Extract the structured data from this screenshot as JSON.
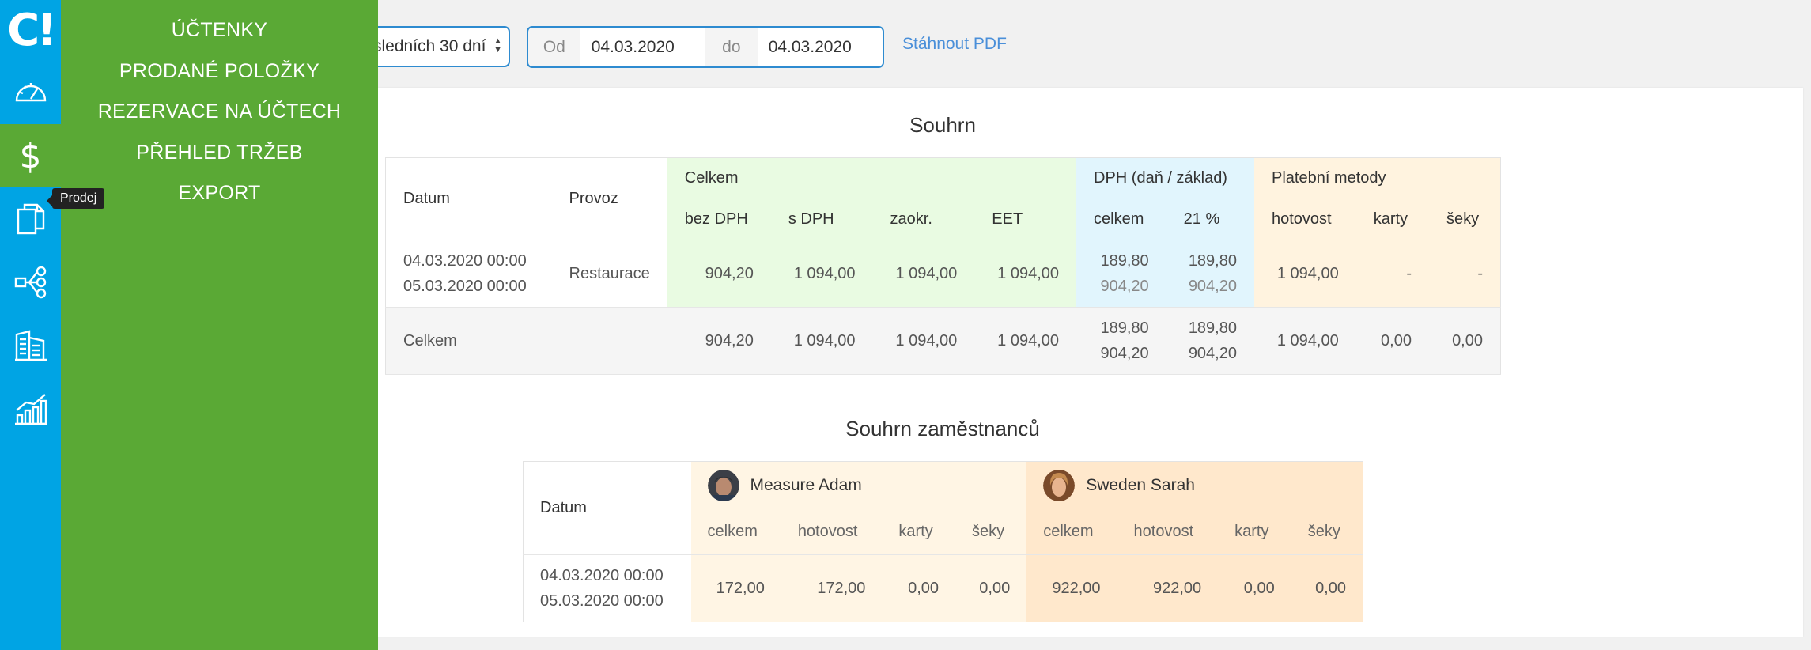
{
  "logo": "C!",
  "rail": {
    "items": [
      "dashboard-icon",
      "dollar-icon",
      "documents-icon",
      "network-icon",
      "building-icon",
      "chart-icon"
    ],
    "tooltip": "Prodej"
  },
  "menu": {
    "items": [
      "ÚČTENKY",
      "PRODANÉ POLOŽKY",
      "REZERVACE NA ÚČTECH",
      "PŘEHLED TRŽEB",
      "EXPORT"
    ]
  },
  "toolbar": {
    "period_select": "sledních 30 dní",
    "from_label": "Od",
    "from_value": "04.03.2020",
    "to_label": "do",
    "to_value": "04.03.2020",
    "pdf_link": "Stáhnout PDF"
  },
  "summary": {
    "title": "Souhrn",
    "headers": {
      "datum": "Datum",
      "provoz": "Provoz",
      "celkem_group": "Celkem",
      "dph_group": "DPH (daň / základ)",
      "platebni_group": "Platební metody",
      "bez_dph": "bez DPH",
      "s_dph": "s DPH",
      "zaokr": "zaokr.",
      "eet": "EET",
      "dph_celkem": "celkem",
      "dph_21": "21 %",
      "hotovost": "hotovost",
      "karty": "karty",
      "seky": "šeky"
    },
    "row": {
      "date_from": "04.03.2020 00:00",
      "date_to": "05.03.2020 00:00",
      "provoz": "Restaurace",
      "bez_dph": "904,20",
      "s_dph": "1 094,00",
      "zaokr": "1 094,00",
      "eet": "1 094,00",
      "dph_celkem_tax": "189,80",
      "dph_celkem_base": "904,20",
      "dph_21_tax": "189,80",
      "dph_21_base": "904,20",
      "hotovost": "1 094,00",
      "karty": "-",
      "seky": "-"
    },
    "total": {
      "label": "Celkem",
      "bez_dph": "904,20",
      "s_dph": "1 094,00",
      "zaokr": "1 094,00",
      "eet": "1 094,00",
      "dph_celkem_tax": "189,80",
      "dph_celkem_base": "904,20",
      "dph_21_tax": "189,80",
      "dph_21_base": "904,20",
      "hotovost": "1 094,00",
      "karty": "0,00",
      "seky": "0,00"
    }
  },
  "employees": {
    "title": "Souhrn zaměstnanců",
    "datum_header": "Datum",
    "col_headers": [
      "celkem",
      "hotovost",
      "karty",
      "šeky"
    ],
    "people": [
      {
        "name": "Measure Adam",
        "celkem": "172,00",
        "hotovost": "172,00",
        "karty": "0,00",
        "seky": "0,00"
      },
      {
        "name": "Sweden Sarah",
        "celkem": "922,00",
        "hotovost": "922,00",
        "karty": "0,00",
        "seky": "0,00"
      }
    ],
    "date_from": "04.03.2020 00:00",
    "date_to": "05.03.2020 00:00"
  },
  "colors": {
    "rail": "#00a4e4",
    "menu": "#5aa935",
    "accent": "#2e8bd0"
  }
}
